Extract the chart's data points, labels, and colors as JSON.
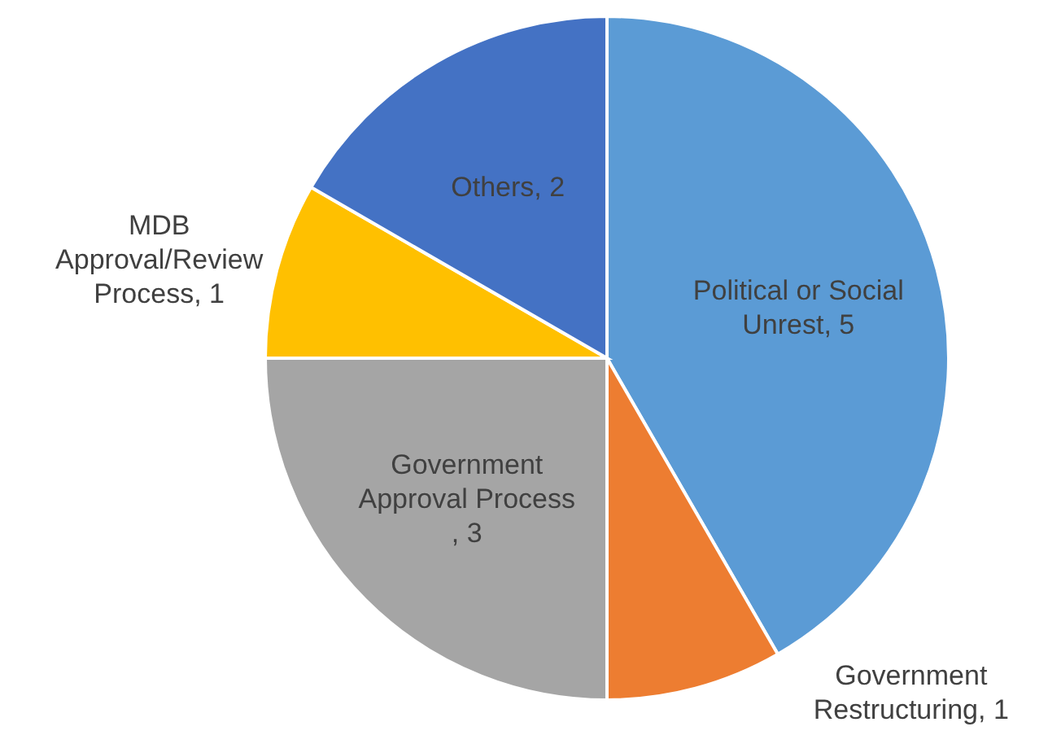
{
  "chart_data": {
    "type": "pie",
    "categories": [
      "Political or Social Unrest",
      "Government Restructuring",
      "Government Approval Process",
      "MDB Approval/Review Process",
      "Others"
    ],
    "values": [
      5,
      1,
      3,
      1,
      2
    ],
    "value_labels": [
      ", 5",
      ", 1",
      ", 3",
      ", 1",
      ", 2"
    ],
    "colors": [
      "#5b9bd5",
      "#ed7d31",
      "#a5a5a5",
      "#ffc000",
      "#4472c4"
    ]
  }
}
